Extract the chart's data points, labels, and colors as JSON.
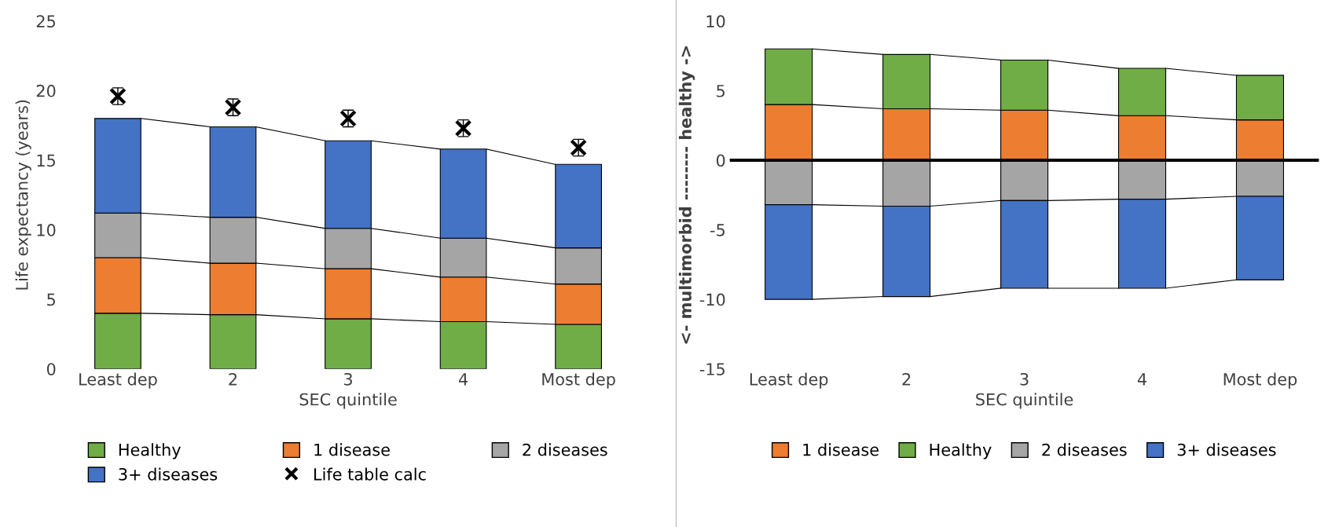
{
  "chart_data": [
    {
      "type": "bar",
      "stacked": true,
      "xlabel": "SEC quintile",
      "ylabel": "Life expectancy (years)",
      "categories": [
        "Least dep",
        "2",
        "3",
        "4",
        "Most dep"
      ],
      "ylim": [
        0,
        25
      ],
      "yticks": [
        0,
        5,
        10,
        15,
        20,
        25
      ],
      "grid": false,
      "legend": "bottom",
      "series": [
        {
          "name": "Healthy",
          "color": "#70ad47",
          "values": [
            4.0,
            3.9,
            3.6,
            3.4,
            3.2
          ]
        },
        {
          "name": "1 disease",
          "color": "#ed7d31",
          "values": [
            4.0,
            3.7,
            3.6,
            3.2,
            2.9
          ]
        },
        {
          "name": "2 diseases",
          "color": "#a5a5a5",
          "values": [
            3.2,
            3.3,
            2.9,
            2.8,
            2.6
          ]
        },
        {
          "name": "3+ diseases",
          "color": "#4472c4",
          "values": [
            6.8,
            6.5,
            6.3,
            6.4,
            6.0
          ]
        },
        {
          "name": "Life table calc",
          "type": "scatter",
          "marker": "cross",
          "color": "#000000",
          "values": [
            19.6,
            18.8,
            18.0,
            17.3,
            15.9
          ],
          "errors": [
            0.6,
            0.6,
            0.6,
            0.6,
            0.6
          ]
        }
      ]
    },
    {
      "type": "bar",
      "stacked": true,
      "xlabel": "SEC quintile",
      "ylabel": "<- multimorbid -------- healthy ->",
      "categories": [
        "Least dep",
        "2",
        "3",
        "4",
        "Most dep"
      ],
      "ylim": [
        -15,
        10
      ],
      "yticks": [
        {
          "value": -15,
          "label": "-15"
        },
        {
          "value": -10,
          "label": "-10"
        },
        {
          "value": -5,
          "label": "-5"
        },
        0,
        5,
        10
      ],
      "grid": false,
      "legend": "bottom",
      "ref_lines": [
        {
          "axis": "y",
          "value": 0,
          "color": "#000000"
        }
      ],
      "series": [
        {
          "name": "1 disease",
          "color": "#ed7d31",
          "values": [
            4.0,
            3.7,
            3.6,
            3.2,
            2.9
          ]
        },
        {
          "name": "Healthy",
          "color": "#70ad47",
          "values": [
            4.0,
            3.9,
            3.6,
            3.4,
            3.2
          ]
        },
        {
          "name": "2 diseases",
          "color": "#a5a5a5",
          "values": [
            -3.2,
            -3.3,
            -2.9,
            -2.8,
            -2.6
          ]
        },
        {
          "name": "3+ diseases",
          "color": "#4472c4",
          "values": [
            -6.8,
            -6.5,
            -6.3,
            -6.4,
            -6.0
          ]
        }
      ]
    }
  ]
}
